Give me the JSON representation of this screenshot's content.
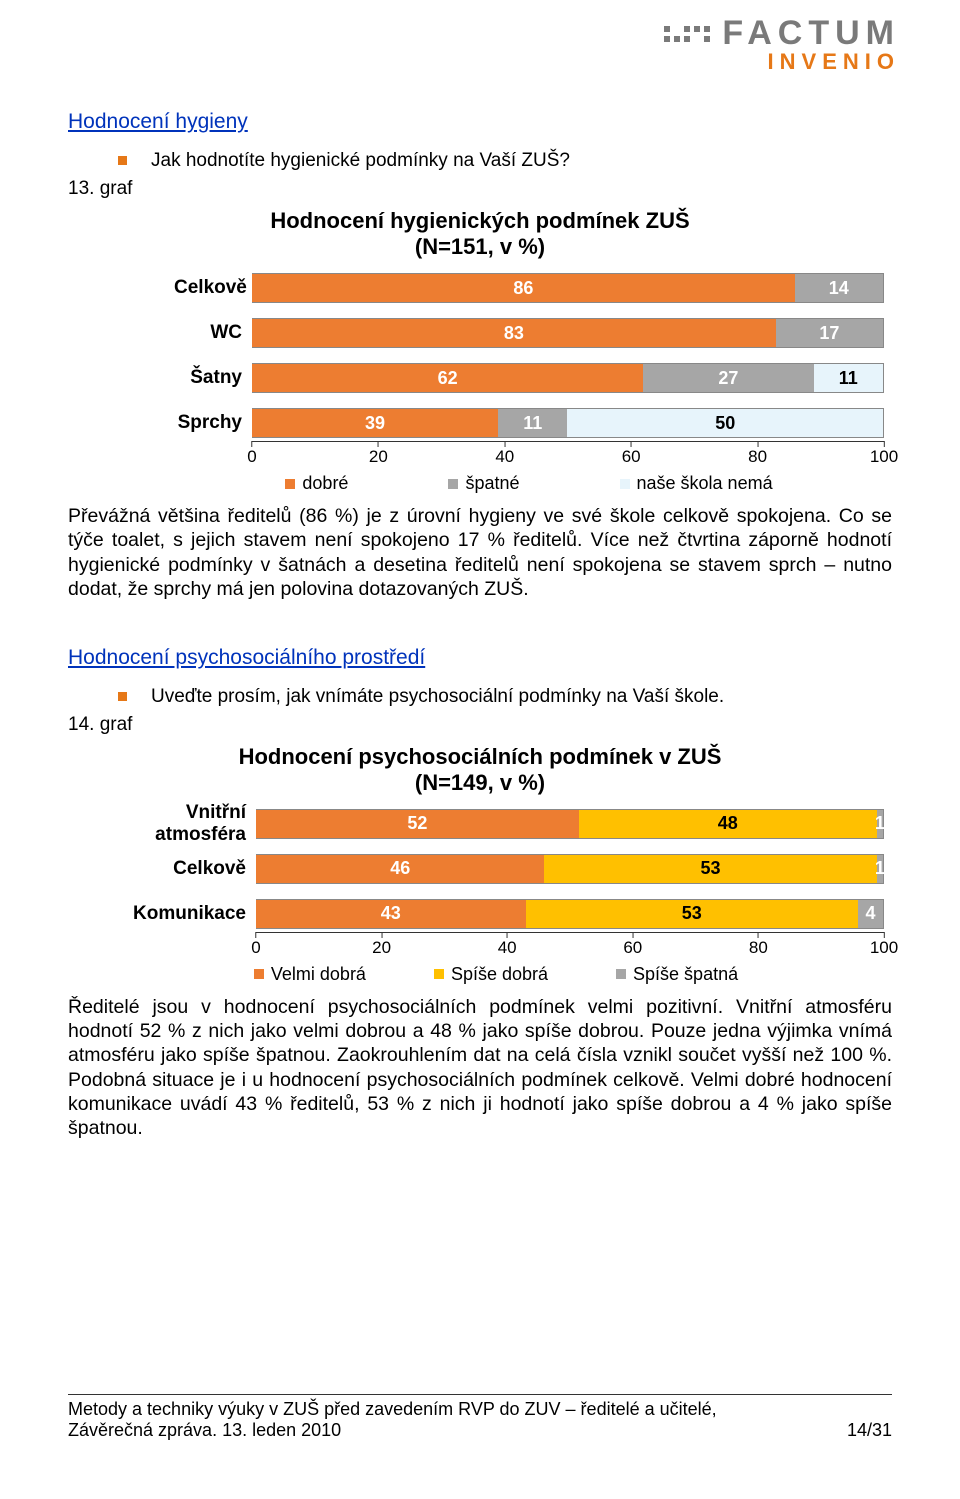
{
  "logo": {
    "main": "FACTUM",
    "sub": "INVENIO"
  },
  "section1_title": "Hodnocení hygieny",
  "bullet1": "Jak hodnotíte hygienické podmínky na Vaší ZUŠ?",
  "graf1_label": "13. graf",
  "chart1": {
    "title": "Hodnocení hygienických podmínek ZUŠ",
    "subtitle": "(N=151, v %)",
    "categories": [
      "Celkově",
      "WC",
      "Šatny",
      "Sprchy"
    ],
    "series_names": [
      "dobré",
      "špatné",
      "naše škola nemá"
    ],
    "series_colors": [
      "#ed7d31",
      "#a6a6a6",
      "#e7f4fb"
    ],
    "label_colors": [
      "#ffffff",
      "#ffffff",
      "#000000"
    ],
    "values": [
      [
        86,
        14,
        0
      ],
      [
        83,
        17,
        0
      ],
      [
        62,
        27,
        11
      ],
      [
        39,
        11,
        50
      ]
    ],
    "xticks": [
      0,
      20,
      40,
      60,
      80,
      100
    ],
    "xlim": [
      0,
      100
    ]
  },
  "para1": "Převážná většina ředitelů (86 %) je z  úrovní hygieny ve své škole celkově spokojena. Co se týče toalet, s jejich stavem není spokojeno 17 % ředitelů. Více než čtvrtina záporně hodnotí hygienické podmínky v šatnách a desetina ředitelů není spokojena se stavem sprch – nutno dodat, že sprchy má jen polovina dotazovaných ZUŠ.",
  "section2_title": "Hodnocení psychosociálního prostředí",
  "bullet2": "Uveďte prosím, jak vnímáte psychosociální podmínky na Vaší škole.",
  "graf2_label": "14. graf",
  "chart2": {
    "title": "Hodnocení psychosociálních podmínek v ZUŠ",
    "subtitle": "(N=149, v %)",
    "categories": [
      "Vnitřní atmosféra",
      "Celkově",
      "Komunikace"
    ],
    "series_names": [
      "Velmi dobrá",
      "Spíše dobrá",
      "Spíše špatná"
    ],
    "series_colors": [
      "#ed7d31",
      "#ffc000",
      "#a6a6a6"
    ],
    "label_colors": [
      "#ffffff",
      "#000000",
      "#ffffff"
    ],
    "values": [
      [
        52,
        48,
        1
      ],
      [
        46,
        53,
        1
      ],
      [
        43,
        53,
        4
      ]
    ],
    "xticks": [
      0,
      20,
      40,
      60,
      80,
      100
    ],
    "xlim": [
      0,
      100
    ]
  },
  "para2": "Ředitelé jsou v hodnocení psychosociálních podmínek velmi pozitivní. Vnitřní atmosféru hodnotí 52 % z nich jako velmi dobrou a 48 % jako spíše dobrou. Pouze jedna výjimka vnímá atmosféru jako spíše špatnou. Zaokrouhlením dat na celá čísla vznikl součet vyšší než 100 %. Podobná situace je i u hodnocení psychosociálních podmínek celkově. Velmi dobré hodnocení komunikace uvádí 43 % ředitelů, 53 % z nich ji hodnotí jako spíše dobrou a 4 % jako spíše špatnou.",
  "footer": {
    "line1": "Metody a techniky výuky v ZUŠ před zavedením RVP do ZUV – ředitelé a učitelé,",
    "line2": "Závěrečná zpráva. 13. leden 2010",
    "pageno": "14/31"
  }
}
